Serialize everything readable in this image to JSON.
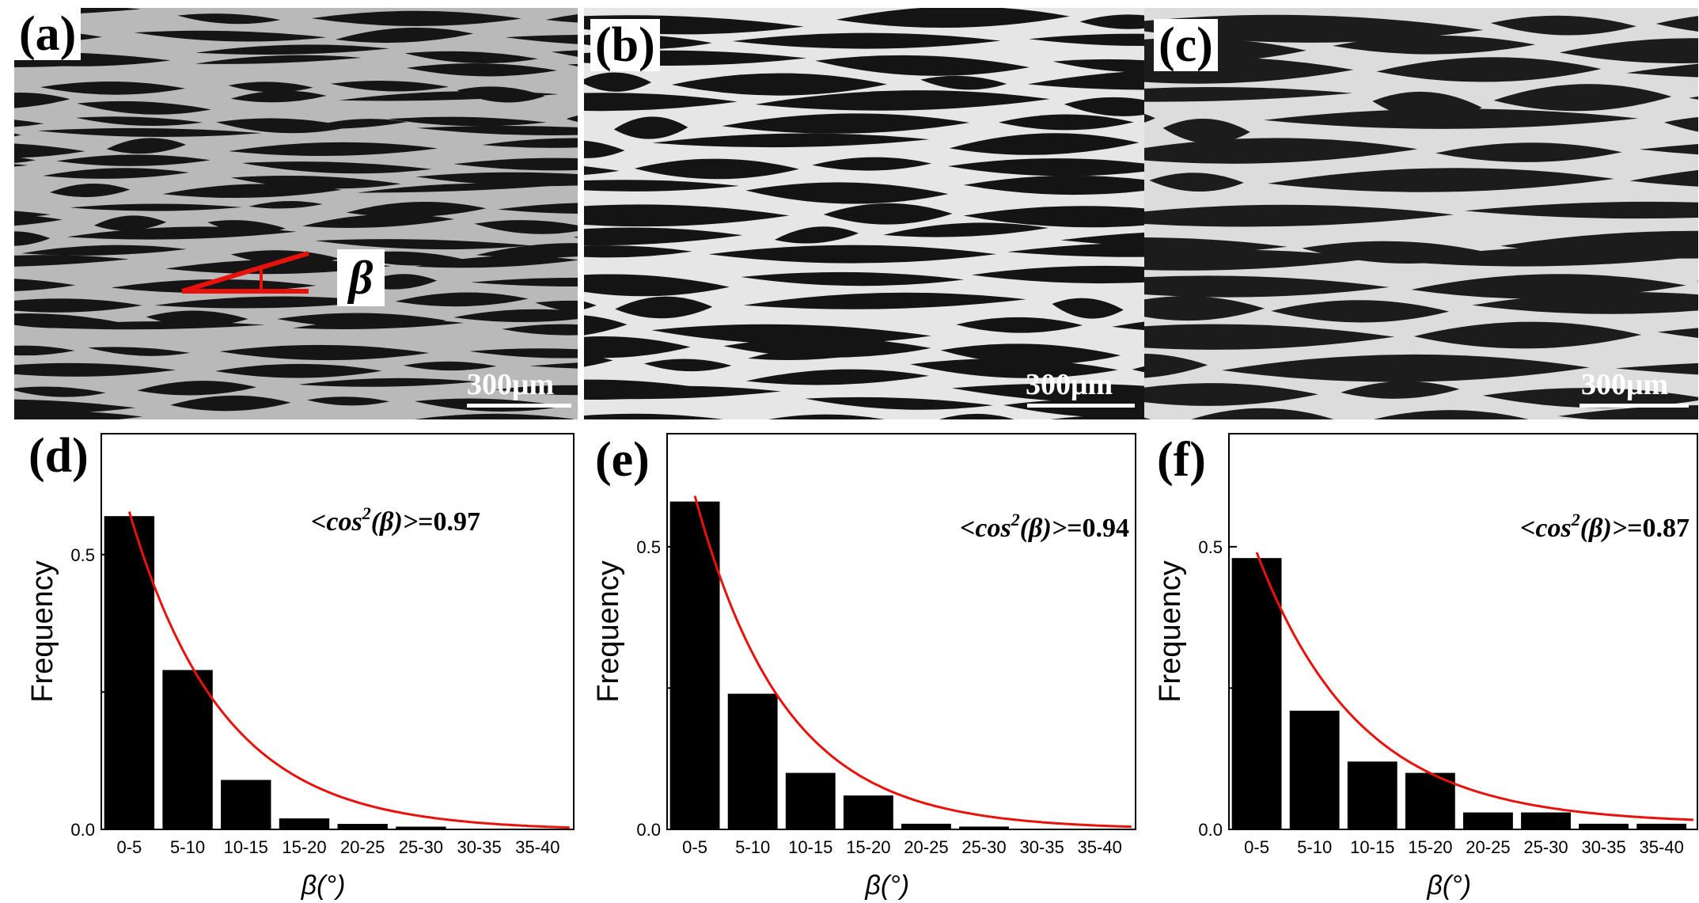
{
  "panels": {
    "a": {
      "label": "(a)",
      "scale": "300μm",
      "beta_symbol": "β"
    },
    "b": {
      "label": "(b)",
      "scale": "300μm"
    },
    "c": {
      "label": "(c)",
      "scale": "300μm"
    }
  },
  "colors": {
    "bar": "#000000",
    "fit": "#e8120c",
    "beta_lines": "#e8120c"
  },
  "chart_data": [
    {
      "panel_label": "(d)",
      "type": "bar",
      "categories": [
        "0-5",
        "5-10",
        "10-15",
        "15-20",
        "20-25",
        "25-30",
        "30-35",
        "35-40"
      ],
      "values": [
        0.57,
        0.29,
        0.09,
        0.02,
        0.01,
        0.005,
        0,
        0
      ],
      "ylabel": "Frequency",
      "xlabel": "β(°)",
      "yticks": [
        "0.0",
        "0.5"
      ],
      "ylim": [
        0,
        0.72
      ],
      "annotation": {
        "prefix": "<cos",
        "sup": "2",
        "suffix": "(β)>",
        "value": "=0.97"
      },
      "fit_curve": {
        "type": "exponential",
        "start": 0.58,
        "decay": 0.62,
        "offset": -0.002
      }
    },
    {
      "panel_label": "(e)",
      "type": "bar",
      "categories": [
        "0-5",
        "5-10",
        "10-15",
        "15-20",
        "20-25",
        "25-30",
        "30-35",
        "35-40"
      ],
      "values": [
        0.58,
        0.24,
        0.1,
        0.06,
        0.01,
        0.005,
        0,
        0
      ],
      "ylabel": "Frequency",
      "xlabel": "β(°)",
      "yticks": [
        "0.0",
        "0.5"
      ],
      "ylim": [
        0,
        0.7
      ],
      "annotation": {
        "prefix": "<cos",
        "sup": "2",
        "suffix": "(β)>",
        "value": "=0.94"
      },
      "fit_curve": {
        "type": "exponential",
        "start": 0.59,
        "decay": 0.64,
        "offset": 0.0
      }
    },
    {
      "panel_label": "(f)",
      "type": "bar",
      "categories": [
        "0-5",
        "5-10",
        "10-15",
        "15-20",
        "20-25",
        "25-30",
        "30-35",
        "35-40"
      ],
      "values": [
        0.48,
        0.21,
        0.12,
        0.1,
        0.03,
        0.03,
        0.01,
        0.01
      ],
      "ylabel": "Frequency",
      "xlabel": "β(°)",
      "yticks": [
        "0.0",
        "0.5"
      ],
      "ylim": [
        0,
        0.7
      ],
      "annotation": {
        "prefix": "<cos",
        "sup": "2",
        "suffix": "(β)>",
        "value": "=0.87"
      },
      "fit_curve": {
        "type": "exponential",
        "start": 0.48,
        "decay": 0.56,
        "offset": 0.01
      }
    }
  ]
}
